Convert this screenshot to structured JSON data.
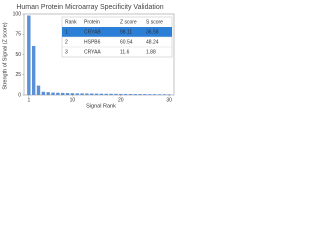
{
  "chart_data": {
    "type": "bar",
    "title": "Human Protein Microarray Specificity Validation",
    "x_label": "Signal Rank",
    "y_label": "Strength of Signal (Z score)",
    "x": [
      1,
      2,
      3,
      4,
      5,
      6,
      7,
      8,
      9,
      10,
      11,
      12,
      13,
      14,
      15,
      16,
      17,
      18,
      19,
      20,
      21,
      22,
      23,
      24,
      25,
      26,
      27,
      28,
      29,
      30
    ],
    "values": [
      98.11,
      60.54,
      11.6,
      4,
      3.5,
      3,
      2.8,
      2.6,
      2.4,
      2.2,
      2,
      2,
      1.9,
      1.8,
      1.7,
      1.6,
      1.5,
      1.5,
      1.4,
      1.3,
      1.3,
      1.2,
      1.2,
      1.1,
      1.1,
      1,
      1,
      0.9,
      0.9,
      0.8
    ],
    "color": "#5b8fd6",
    "xlim": [
      0,
      31
    ],
    "xticks": [
      1,
      10,
      20,
      30
    ],
    "ylim": [
      0,
      100
    ],
    "yticks": [
      0,
      25,
      50,
      75,
      100
    ],
    "table": {
      "columns": [
        "Rank",
        "Protein",
        "Z score",
        "S score"
      ],
      "rows": [
        [
          1,
          "CRYAB",
          98.11,
          36.58
        ],
        [
          2,
          "HSPB6",
          60.54,
          48.24
        ],
        [
          3,
          "CRYAA",
          11.6,
          1.88
        ]
      ],
      "highlight_color": "#2b7fd6"
    }
  }
}
